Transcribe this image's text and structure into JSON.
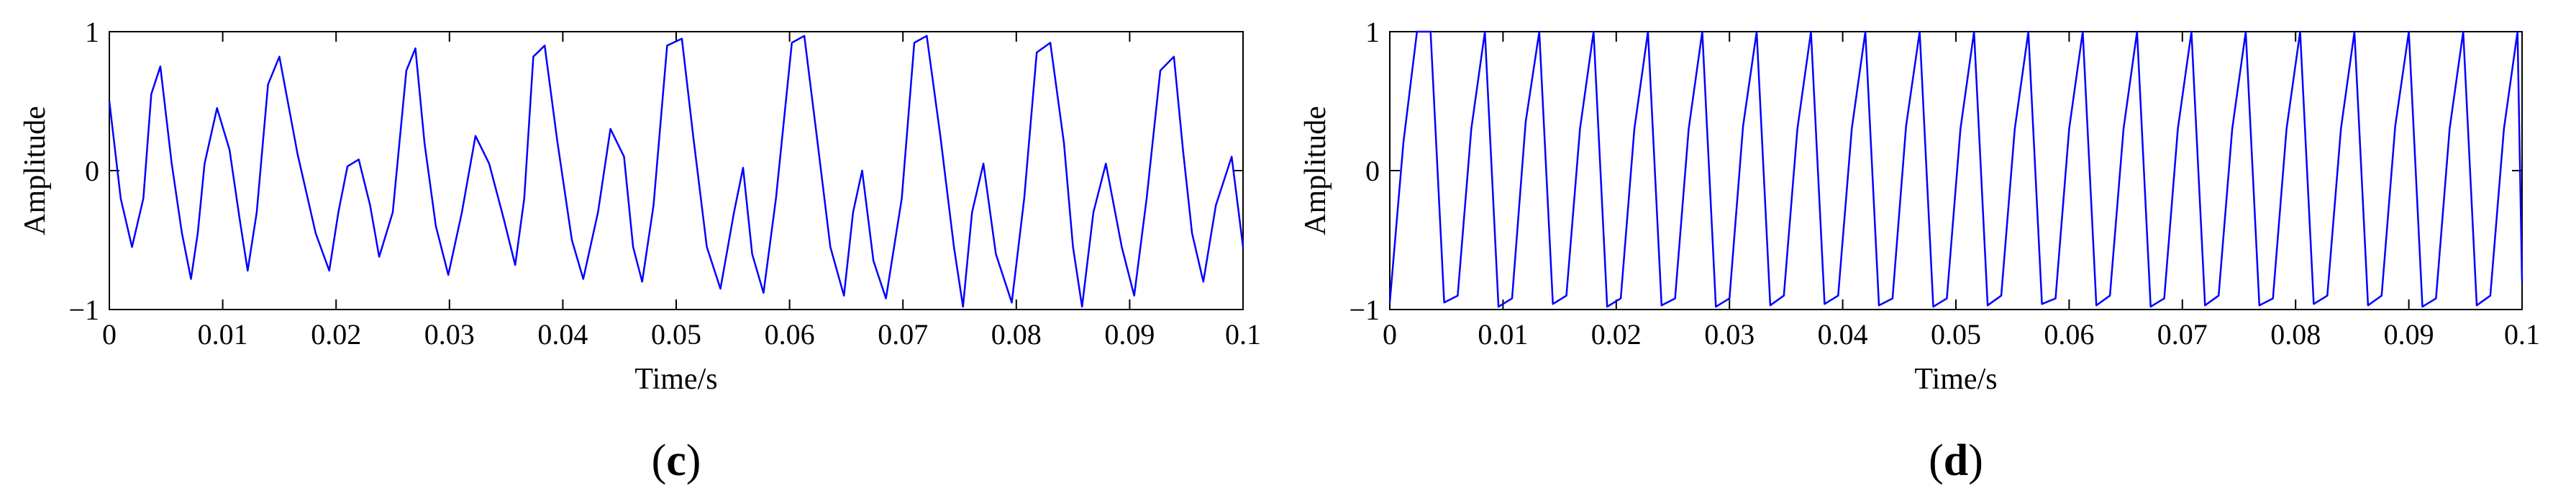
{
  "colors": {
    "series": "#0000ff",
    "axis": "#000000",
    "background": "#ffffff"
  },
  "chart_data": [
    {
      "type": "line",
      "panel_label": "c",
      "xlabel": "Time/s",
      "ylabel": "Amplitude",
      "xlim": [
        0,
        0.1
      ],
      "ylim": [
        -1,
        1
      ],
      "grid": false,
      "x_ticks": [
        "0",
        "0.01",
        "0.02",
        "0.03",
        "0.04",
        "0.05",
        "0.06",
        "0.07",
        "0.08",
        "0.09",
        "0.1"
      ],
      "y_ticks": [
        "-1",
        "0",
        "1"
      ],
      "description_of_signal": "waveform",
      "series": [
        {
          "x": [
            0,
            0.001,
            0.002,
            0.003,
            0.0037,
            0.0045,
            0.0055,
            0.0064,
            0.0072,
            0.0078,
            0.0084,
            0.0095,
            0.0106,
            0.0115,
            0.0122,
            0.013,
            0.014,
            0.015,
            0.0166,
            0.0182,
            0.0194,
            0.0202,
            0.021,
            0.022,
            0.023,
            0.0238,
            0.025,
            0.0262,
            0.027,
            0.0278,
            0.0288,
            0.0299,
            0.0311,
            0.0323,
            0.0335,
            0.0348,
            0.0358,
            0.0366,
            0.0374,
            0.0384,
            0.0395,
            0.0408,
            0.0418,
            0.0431,
            0.0442,
            0.0454,
            0.0462,
            0.047,
            0.048,
            0.0492,
            0.0505,
            0.0515,
            0.0527,
            0.0539,
            0.0551,
            0.0559,
            0.0567,
            0.0577,
            0.0588,
            0.0602,
            0.0613,
            0.0624,
            0.0636,
            0.0648,
            0.0656,
            0.0664,
            0.0674,
            0.0685,
            0.0699,
            0.071,
            0.0721,
            0.0733,
            0.0745,
            0.0753,
            0.0761,
            0.0771,
            0.0782,
            0.0796,
            0.0807,
            0.0818,
            0.083,
            0.0842,
            0.085,
            0.0858,
            0.0868,
            0.0879,
            0.0893,
            0.0904,
            0.0915,
            0.0927,
            0.0939,
            0.0947,
            0.0955,
            0.0965,
            0.0976,
            0.099,
            0.1
          ],
          "y": [
            0.5,
            -0.2,
            -0.55,
            -0.2,
            0.55,
            0.75,
            0.05,
            -0.45,
            -0.78,
            -0.45,
            0.05,
            0.45,
            0.15,
            -0.35,
            -0.72,
            -0.3,
            0.62,
            0.82,
            0.12,
            -0.45,
            -0.72,
            -0.3,
            0.03,
            0.08,
            -0.25,
            -0.62,
            -0.3,
            0.72,
            0.88,
            0.2,
            -0.4,
            -0.75,
            -0.3,
            0.25,
            0.05,
            -0.35,
            -0.68,
            -0.2,
            0.82,
            0.9,
            0.22,
            -0.5,
            -0.78,
            -0.3,
            0.3,
            0.1,
            -0.55,
            -0.8,
            -0.25,
            0.9,
            0.95,
            0.25,
            -0.55,
            -0.85,
            -0.3,
            0.02,
            -0.6,
            -0.88,
            -0.2,
            0.92,
            0.97,
            0.25,
            -0.55,
            -0.9,
            -0.3,
            0.0,
            -0.65,
            -0.92,
            -0.2,
            0.92,
            0.97,
            0.25,
            -0.55,
            -0.98,
            -0.3,
            0.05,
            -0.6,
            -0.95,
            -0.2,
            0.85,
            0.92,
            0.2,
            -0.55,
            -0.98,
            -0.3,
            0.05,
            -0.55,
            -0.9,
            -0.2,
            0.72,
            0.82,
            0.15,
            -0.45,
            -0.8,
            -0.25,
            0.1,
            -0.55
          ]
        }
      ]
    },
    {
      "type": "line",
      "panel_label": "d",
      "xlabel": "Time/s",
      "ylabel": "Amplitude",
      "xlim": [
        0,
        0.1
      ],
      "ylim": [
        -1,
        1
      ],
      "grid": false,
      "x_ticks": [
        "0",
        "0.01",
        "0.02",
        "0.03",
        "0.04",
        "0.05",
        "0.06",
        "0.07",
        "0.08",
        "0.09",
        "0.1"
      ],
      "y_ticks": [
        "-1",
        "0",
        "1"
      ],
      "series": [
        {
          "x": [
            0,
            0.0012,
            0.0024,
            0.0036,
            0.0048,
            0.006,
            0.0072,
            0.0084,
            0.0096,
            0.0108,
            0.012,
            0.0132,
            0.0144,
            0.0156,
            0.0168,
            0.018,
            0.0192,
            0.0204,
            0.0216,
            0.0228,
            0.024,
            0.0252,
            0.0264,
            0.0276,
            0.0288,
            0.03,
            0.0312,
            0.0324,
            0.0336,
            0.0348,
            0.036,
            0.0372,
            0.0384,
            0.0396,
            0.0408,
            0.042,
            0.0432,
            0.0444,
            0.0456,
            0.0468,
            0.048,
            0.0492,
            0.0504,
            0.0516,
            0.0528,
            0.054,
            0.0552,
            0.0564,
            0.0576,
            0.0588,
            0.06,
            0.0612,
            0.0624,
            0.0636,
            0.0648,
            0.066,
            0.0672,
            0.0684,
            0.0696,
            0.0708,
            0.072,
            0.0732,
            0.0744,
            0.0756,
            0.0768,
            0.078,
            0.0792,
            0.0804,
            0.0816,
            0.0828,
            0.084,
            0.0852,
            0.0864,
            0.0876,
            0.0888,
            0.09,
            0.0912,
            0.0924,
            0.0936,
            0.0948,
            0.096,
            0.0972,
            0.0984,
            0.0996,
            0.1
          ],
          "y": [
            -0.95,
            0.2,
            1.0,
            1.0,
            -0.95,
            -0.9,
            0.3,
            1.0,
            -0.98,
            -0.92,
            0.35,
            1.0,
            -0.96,
            -0.9,
            0.3,
            1.0,
            -0.98,
            -0.92,
            0.3,
            1.0,
            -0.97,
            -0.92,
            0.3,
            1.0,
            -0.98,
            -0.92,
            0.32,
            1.0,
            -0.97,
            -0.9,
            0.3,
            1.0,
            -0.96,
            -0.9,
            0.3,
            1.0,
            -0.97,
            -0.92,
            0.32,
            1.0,
            -0.98,
            -0.92,
            0.3,
            1.0,
            -0.97,
            -0.9,
            0.3,
            1.0,
            -0.96,
            -0.92,
            0.3,
            1.0,
            -0.97,
            -0.9,
            0.3,
            1.0,
            -0.98,
            -0.92,
            0.3,
            1.0,
            -0.97,
            -0.9,
            0.3,
            1.0,
            -0.97,
            -0.92,
            0.3,
            1.0,
            -0.96,
            -0.9,
            0.3,
            1.0,
            -0.97,
            -0.9,
            0.32,
            1.0,
            -0.98,
            -0.92,
            0.3,
            1.0,
            -0.97,
            -0.9,
            0.3,
            1.0,
            -0.8
          ]
        }
      ]
    }
  ]
}
